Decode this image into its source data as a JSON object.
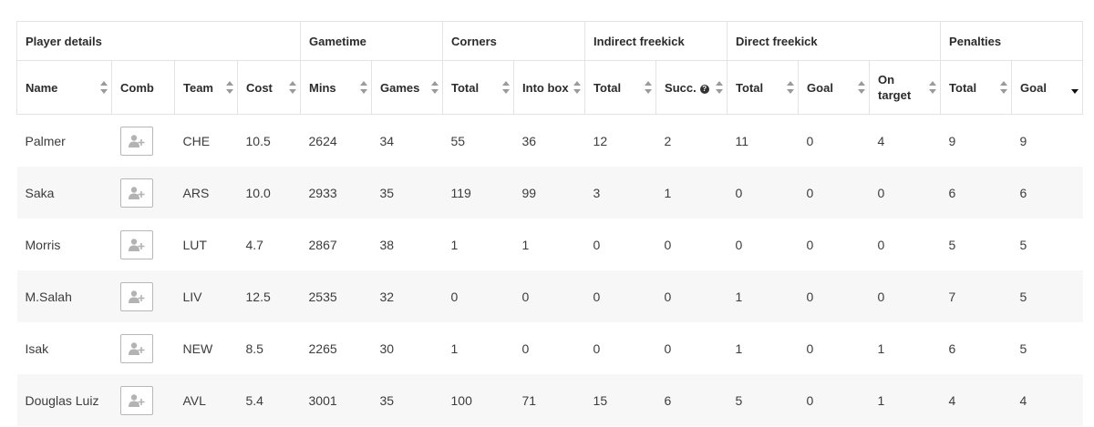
{
  "groups": [
    {
      "label": "Player details"
    },
    {
      "label": "Gametime"
    },
    {
      "label": "Corners"
    },
    {
      "label": "Indirect freekick"
    },
    {
      "label": "Direct freekick"
    },
    {
      "label": "Penalties"
    }
  ],
  "columns": [
    {
      "label": "Name",
      "sortable": true
    },
    {
      "label": "Comb",
      "sortable": false
    },
    {
      "label": "Team",
      "sortable": true
    },
    {
      "label": "Cost",
      "sortable": true
    },
    {
      "label": "Mins",
      "sortable": true
    },
    {
      "label": "Games",
      "sortable": true
    },
    {
      "label": "Total",
      "sortable": true
    },
    {
      "label": "Into box",
      "sortable": true
    },
    {
      "label": "Total",
      "sortable": true
    },
    {
      "label": "Succ.",
      "sortable": true,
      "help_icon": "question-circle-icon"
    },
    {
      "label": "Total",
      "sortable": true
    },
    {
      "label": "Goal",
      "sortable": true
    },
    {
      "label": "On target",
      "sortable": true
    },
    {
      "label": "Total",
      "sortable": true
    },
    {
      "label": "Goal",
      "sortable": true,
      "sorted": "descending"
    }
  ],
  "help_glyph": "?",
  "comb_icon": "add-user-icon",
  "rows": [
    {
      "name": "Palmer",
      "team": "CHE",
      "cost": "10.5",
      "mins": "2624",
      "games": "34",
      "corners_total": "55",
      "corners_into_box": "36",
      "ifk_total": "12",
      "ifk_succ": "2",
      "dfk_total": "11",
      "dfk_goal": "0",
      "dfk_on_target": "4",
      "pen_total": "9",
      "pen_goal": "9"
    },
    {
      "name": "Saka",
      "team": "ARS",
      "cost": "10.0",
      "mins": "2933",
      "games": "35",
      "corners_total": "119",
      "corners_into_box": "99",
      "ifk_total": "3",
      "ifk_succ": "1",
      "dfk_total": "0",
      "dfk_goal": "0",
      "dfk_on_target": "0",
      "pen_total": "6",
      "pen_goal": "6"
    },
    {
      "name": "Morris",
      "team": "LUT",
      "cost": "4.7",
      "mins": "2867",
      "games": "38",
      "corners_total": "1",
      "corners_into_box": "1",
      "ifk_total": "0",
      "ifk_succ": "0",
      "dfk_total": "0",
      "dfk_goal": "0",
      "dfk_on_target": "0",
      "pen_total": "5",
      "pen_goal": "5"
    },
    {
      "name": "M.Salah",
      "team": "LIV",
      "cost": "12.5",
      "mins": "2535",
      "games": "32",
      "corners_total": "0",
      "corners_into_box": "0",
      "ifk_total": "0",
      "ifk_succ": "0",
      "dfk_total": "1",
      "dfk_goal": "0",
      "dfk_on_target": "0",
      "pen_total": "7",
      "pen_goal": "5"
    },
    {
      "name": "Isak",
      "team": "NEW",
      "cost": "8.5",
      "mins": "2265",
      "games": "30",
      "corners_total": "1",
      "corners_into_box": "0",
      "ifk_total": "0",
      "ifk_succ": "0",
      "dfk_total": "1",
      "dfk_goal": "0",
      "dfk_on_target": "1",
      "pen_total": "6",
      "pen_goal": "5"
    },
    {
      "name": "Douglas Luiz",
      "team": "AVL",
      "cost": "5.4",
      "mins": "3001",
      "games": "35",
      "corners_total": "100",
      "corners_into_box": "71",
      "ifk_total": "15",
      "ifk_succ": "6",
      "dfk_total": "5",
      "dfk_goal": "0",
      "dfk_on_target": "1",
      "pen_total": "4",
      "pen_goal": "4"
    }
  ]
}
